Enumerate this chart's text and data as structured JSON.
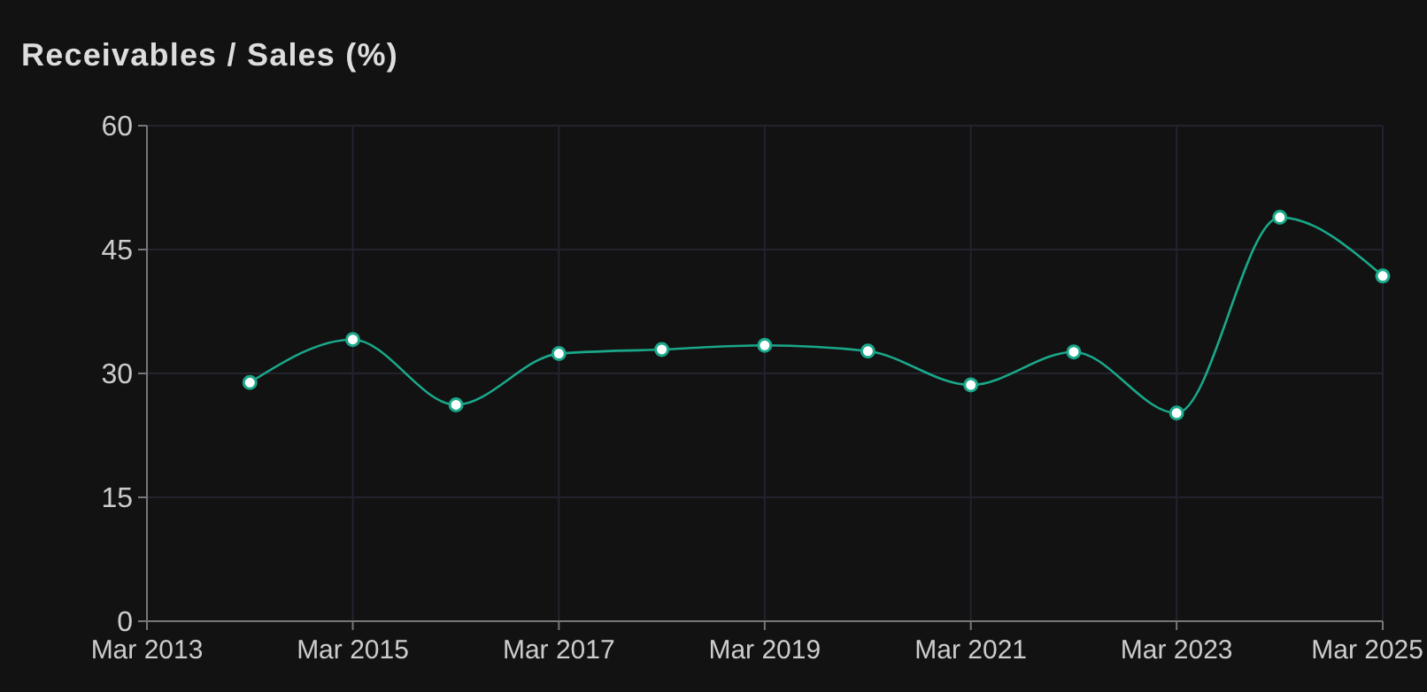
{
  "chart_data": {
    "type": "line",
    "title": "Receivables / Sales (%)",
    "x": [
      "2014-03",
      "2015-03",
      "2016-03",
      "2017-03",
      "2018-03",
      "2019-03",
      "2020-03",
      "2021-03",
      "2022-03",
      "2023-03",
      "2024-03",
      "2025-03"
    ],
    "series": [
      {
        "color": "#1aa88a",
        "values": [
          28.9,
          34.1,
          26.2,
          32.4,
          32.9,
          33.4,
          32.7,
          28.6,
          32.6,
          25.2,
          48.9,
          41.8
        ]
      }
    ],
    "xlim": [
      "2013-03",
      "2025-03"
    ],
    "xticks": [
      {
        "value": "2013-03",
        "label": "Mar 2013"
      },
      {
        "value": "2015-03",
        "label": "Mar 2015"
      },
      {
        "value": "2017-03",
        "label": "Mar 2017"
      },
      {
        "value": "2019-03",
        "label": "Mar 2019"
      },
      {
        "value": "2021-03",
        "label": "Mar 2021"
      },
      {
        "value": "2023-03",
        "label": "Mar 2023"
      },
      {
        "value": "2025-03",
        "label": "Mar 2025"
      }
    ],
    "ylim": [
      0,
      60
    ],
    "yticks": [
      0,
      15,
      30,
      45,
      60
    ],
    "grid": true,
    "marker": "circle",
    "line_style": "solid"
  }
}
